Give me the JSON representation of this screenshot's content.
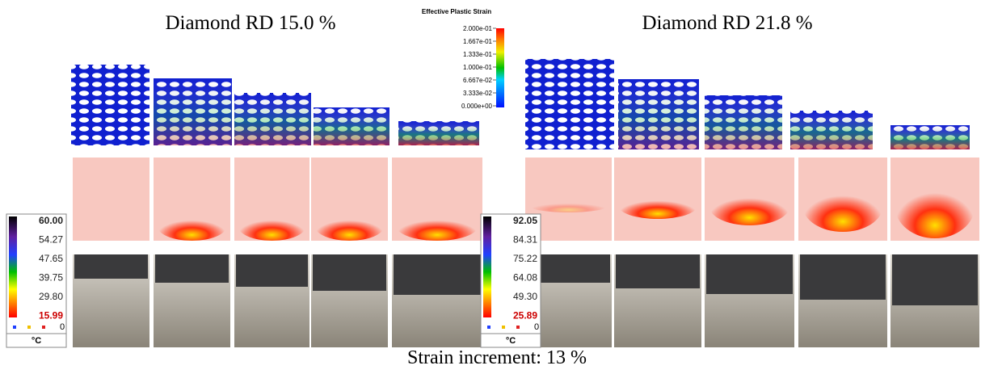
{
  "panels": [
    {
      "title": "Diamond RD 15.0 %"
    },
    {
      "title": "Diamond RD 21.8 %"
    }
  ],
  "strain_legend": {
    "title": "Effective Plastic Strain",
    "labels": [
      "2.000e-01",
      "1.667e-01",
      "1.333e-01",
      "1.000e-01",
      "6.667e-02",
      "3.333e-02",
      "0.000e+00"
    ]
  },
  "thermal_scales": [
    {
      "labels": [
        "60.00",
        "54.27",
        "47.65",
        "39.75",
        "29.80",
        "15.99"
      ],
      "indicator": "0",
      "unit": "°C"
    },
    {
      "labels": [
        "92.05",
        "84.31",
        "75.22",
        "64.08",
        "49.30",
        "25.89"
      ],
      "indicator": "0",
      "unit": "°C"
    }
  ],
  "caption": "Strain increment: 13 %"
}
